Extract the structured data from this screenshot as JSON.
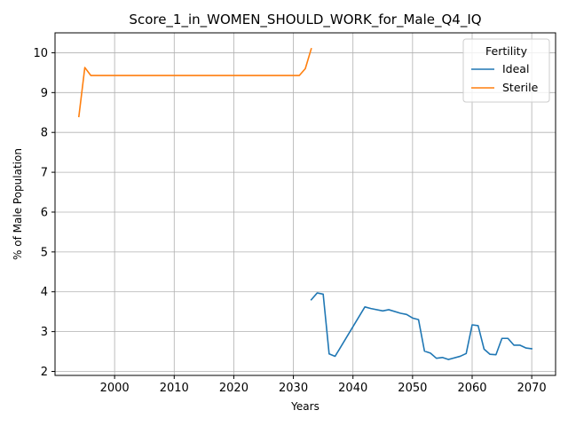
{
  "chart_data": {
    "type": "line",
    "title": "Score_1_in_WOMEN_SHOULD_WORK_for_Male_Q4_IQ",
    "xlabel": "Years",
    "ylabel": "% of Male Population",
    "xlim": [
      1990,
      2074
    ],
    "ylim": [
      1.9,
      10.5
    ],
    "xticks": [
      2000,
      2010,
      2020,
      2030,
      2040,
      2050,
      2060,
      2070
    ],
    "yticks": [
      2,
      3,
      4,
      5,
      6,
      7,
      8,
      9,
      10
    ],
    "grid": true,
    "legend": {
      "title": "Fertility",
      "placement": "top-right"
    },
    "series": [
      {
        "name": "Ideal",
        "color": "#1f77b4",
        "x": [
          2033,
          2034,
          2035,
          2036,
          2037,
          2042,
          2043,
          2045,
          2046,
          2048,
          2049,
          2050,
          2051,
          2052,
          2053,
          2054,
          2055,
          2056,
          2058,
          2059,
          2060,
          2061,
          2062,
          2063,
          2064,
          2065,
          2066,
          2067,
          2068,
          2069,
          2070
        ],
        "y": [
          3.8,
          3.97,
          3.94,
          2.44,
          2.38,
          3.62,
          3.58,
          3.52,
          3.55,
          3.46,
          3.43,
          3.34,
          3.3,
          2.51,
          2.46,
          2.33,
          2.35,
          2.3,
          2.38,
          2.45,
          3.17,
          3.15,
          2.56,
          2.43,
          2.42,
          2.83,
          2.83,
          2.66,
          2.66,
          2.59,
          2.57
        ]
      },
      {
        "name": "Sterile",
        "color": "#ff7f0e",
        "x": [
          1994,
          1995,
          1996,
          2031,
          2032,
          2033
        ],
        "y": [
          8.4,
          9.63,
          9.43,
          9.43,
          9.6,
          10.1
        ]
      }
    ]
  }
}
